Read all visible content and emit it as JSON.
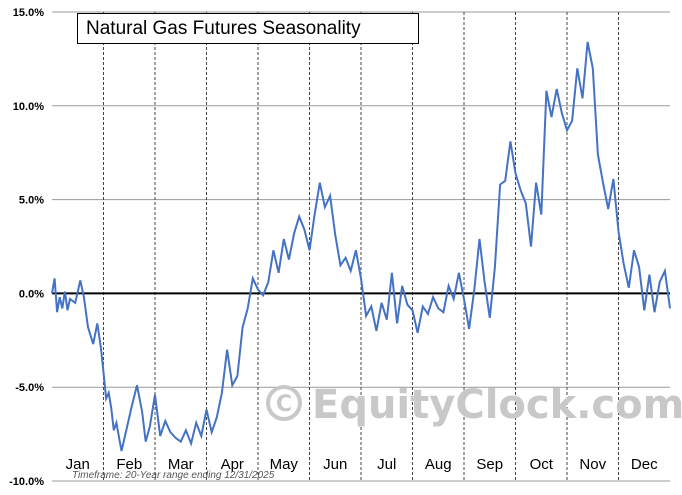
{
  "chart_data": {
    "type": "line",
    "title": "Natural Gas Futures Seasonality",
    "xlabel": "",
    "ylabel": "",
    "ylim": [
      -10,
      15
    ],
    "y_ticks": [
      "15.0%",
      "10.0%",
      "5.0%",
      "0.0%",
      "-5.0%",
      "-10.0%"
    ],
    "x_ticks": [
      "Jan",
      "Feb",
      "Mar",
      "Apr",
      "May",
      "Jun",
      "Jul",
      "Aug",
      "Sep",
      "Oct",
      "Nov",
      "Dec"
    ],
    "grid": true,
    "line_color": "#4472c4",
    "zero_line_color": "#000000",
    "series": [
      {
        "x": [
          0,
          0.05,
          0.1,
          0.15,
          0.2,
          0.25,
          0.3,
          0.35,
          0.45,
          0.55,
          0.62,
          0.7,
          0.8,
          0.88,
          0.95,
          1.0,
          1.05,
          1.1,
          1.15,
          1.2,
          1.25,
          1.35,
          1.45,
          1.55,
          1.65,
          1.75,
          1.82,
          1.9,
          2.0,
          2.1,
          2.2,
          2.3,
          2.4,
          2.5,
          2.6,
          2.7,
          2.8,
          2.9,
          3.0,
          3.1,
          3.2,
          3.3,
          3.4,
          3.5,
          3.6,
          3.7,
          3.8,
          3.9,
          4.0,
          4.1,
          4.2,
          4.3,
          4.4,
          4.5,
          4.6,
          4.7,
          4.8,
          4.9,
          5.0,
          5.1,
          5.2,
          5.3,
          5.4,
          5.5,
          5.6,
          5.7,
          5.8,
          5.9,
          6.0,
          6.1,
          6.2,
          6.3,
          6.4,
          6.5,
          6.6,
          6.7,
          6.8,
          6.9,
          7.0,
          7.1,
          7.2,
          7.3,
          7.4,
          7.5,
          7.6,
          7.7,
          7.8,
          7.9,
          8.0,
          8.1,
          8.2,
          8.3,
          8.4,
          8.5,
          8.6,
          8.7,
          8.8,
          8.9,
          9.0,
          9.1,
          9.2,
          9.3,
          9.4,
          9.5,
          9.6,
          9.7,
          9.8,
          9.9,
          10.0,
          10.1,
          10.2,
          10.3,
          10.4,
          10.5,
          10.6,
          10.7,
          10.8,
          10.9,
          11.0,
          11.1,
          11.2,
          11.3,
          11.4,
          11.5,
          11.6,
          11.7,
          11.8,
          11.9,
          12.0
        ],
        "values": [
          0.0,
          0.8,
          -1.0,
          -0.2,
          -0.8,
          0.1,
          -0.9,
          -0.3,
          -0.5,
          0.7,
          -0.2,
          -1.8,
          -2.7,
          -1.6,
          -2.9,
          -4.2,
          -5.6,
          -5.3,
          -6.1,
          -7.3,
          -6.9,
          -8.4,
          -7.2,
          -6.0,
          -4.9,
          -6.3,
          -7.9,
          -7.1,
          -5.4,
          -7.6,
          -6.8,
          -7.4,
          -7.7,
          -7.9,
          -7.3,
          -8.0,
          -6.9,
          -7.6,
          -6.2,
          -7.4,
          -6.6,
          -5.3,
          -3.0,
          -4.9,
          -4.4,
          -1.8,
          -0.8,
          0.8,
          0.2,
          -0.1,
          0.6,
          2.3,
          1.1,
          2.9,
          1.8,
          3.2,
          4.1,
          3.4,
          2.3,
          4.2,
          5.9,
          4.6,
          5.2,
          3.1,
          1.5,
          1.9,
          1.2,
          2.3,
          0.8,
          -1.2,
          -0.7,
          -2.0,
          -0.5,
          -1.4,
          1.1,
          -1.6,
          0.4,
          -0.6,
          -0.9,
          -2.1,
          -0.7,
          -1.1,
          -0.2,
          -0.8,
          -1.0,
          0.4,
          -0.3,
          1.1,
          -0.3,
          -1.9,
          0.2,
          2.9,
          0.6,
          -1.3,
          1.4,
          5.8,
          6.0,
          8.1,
          6.4,
          5.5,
          4.8,
          2.5,
          5.9,
          4.2,
          10.8,
          9.4,
          10.9,
          9.6,
          8.7,
          9.2,
          12.0,
          10.4,
          13.4,
          12.0,
          7.4,
          5.9,
          4.5,
          6.1,
          3.3,
          1.6,
          0.3,
          2.3,
          1.4,
          -0.9,
          1.0,
          -1.0,
          0.6,
          1.2,
          -0.8
        ]
      }
    ]
  },
  "watermark": "EquityClock.com",
  "footnote": "Timeframe: 20-Year range ending 12/31/2025"
}
